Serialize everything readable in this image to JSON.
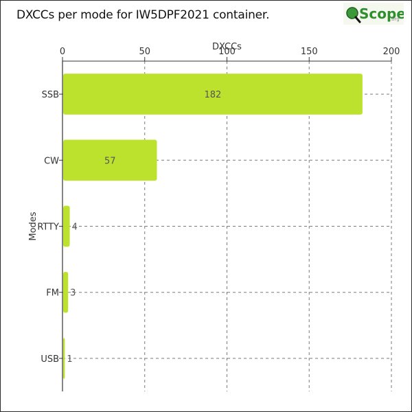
{
  "header": {
    "title": "DXCCs per mode for IW5DPF2021 container.",
    "logo_text": "Scope",
    "logo_suffix": ".org"
  },
  "colors": {
    "bar": "#bde22e",
    "bar_stroke": "#a9cc22",
    "grid": "#7a7a7a",
    "axis": "#333333",
    "logo_green": "#3a9a3a",
    "logo_text": "#2f8f2f"
  },
  "chart_data": {
    "type": "bar",
    "orientation": "horizontal",
    "categories": [
      "SSB",
      "CW",
      "RTTY",
      "FM",
      "USB"
    ],
    "values": [
      182,
      57,
      4,
      3,
      1
    ],
    "xlabel": "DXCCs",
    "ylabel": "Modes",
    "xlim": [
      0,
      200
    ],
    "xticks": [
      0,
      50,
      100,
      150,
      200
    ],
    "x_axis_position": "top",
    "grid": true,
    "grid_style": "dashed",
    "data_labels": true
  }
}
